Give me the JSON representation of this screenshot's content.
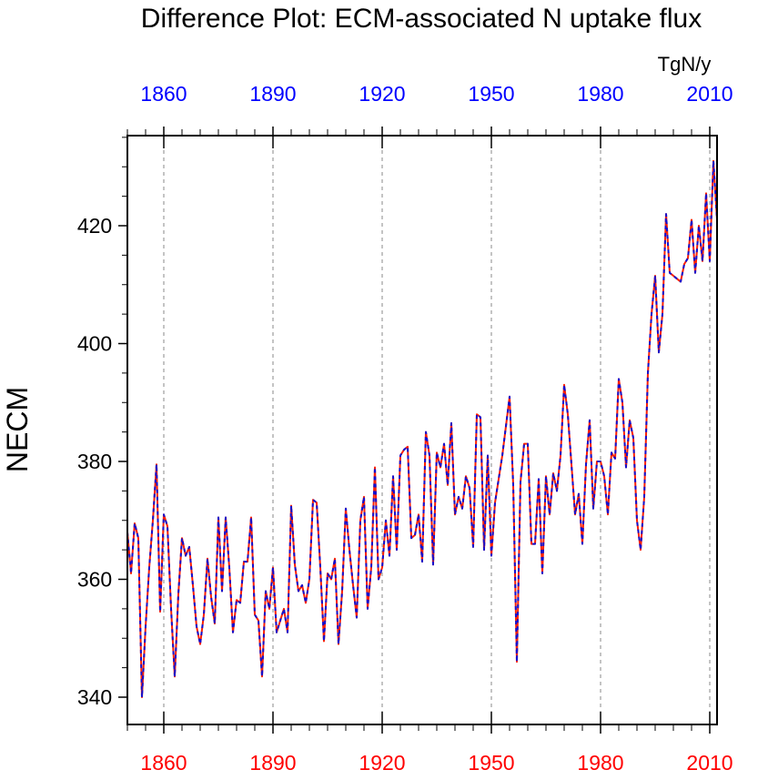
{
  "chart_data": {
    "type": "line",
    "title": "Difference Plot: ECM-associated N uptake flux",
    "units_label": "TgN/y",
    "xlabel": "",
    "ylabel": "NECM",
    "xlim": [
      1850,
      2010
    ],
    "ylim": [
      335,
      438
    ],
    "x_ticks": [
      1860,
      1890,
      1920,
      1950,
      1980,
      2010
    ],
    "x_tick_labels": [
      "1860",
      "1890",
      "1920",
      "1950",
      "1980",
      "2010"
    ],
    "y_ticks": [
      340,
      360,
      380,
      400,
      420
    ],
    "y_tick_labels": [
      "340",
      "360",
      "380",
      "400",
      "420"
    ],
    "grid": "vertical dashed at x ticks",
    "colors": {
      "top_axis_labels": "#0000ff",
      "bottom_axis_labels": "#ff0000",
      "series_a": "#ff2000",
      "series_b": "#1010d0",
      "grid": "#888888"
    },
    "series": [
      {
        "name": "series-red",
        "color": "#ff2000",
        "style": "solid",
        "x": [
          1850,
          1851,
          1852,
          1853,
          1854,
          1855,
          1856,
          1857,
          1858,
          1859,
          1860,
          1861,
          1862,
          1863,
          1864,
          1865,
          1866,
          1867,
          1868,
          1869,
          1870,
          1871,
          1872,
          1873,
          1874,
          1875,
          1876,
          1877,
          1878,
          1879,
          1880,
          1881,
          1882,
          1883,
          1884,
          1885,
          1886,
          1887,
          1888,
          1889,
          1890,
          1891,
          1892,
          1893,
          1894,
          1895,
          1896,
          1897,
          1898,
          1899,
          1900,
          1901,
          1902,
          1903,
          1904,
          1905,
          1906,
          1907,
          1908,
          1909,
          1910,
          1911,
          1912,
          1913,
          1914,
          1915,
          1916,
          1917,
          1918,
          1919,
          1920,
          1921,
          1922,
          1923,
          1924,
          1925,
          1926,
          1927,
          1928,
          1929,
          1930,
          1931,
          1932,
          1933,
          1934,
          1935,
          1936,
          1937,
          1938,
          1939,
          1940,
          1941,
          1942,
          1943,
          1944,
          1945,
          1946,
          1947,
          1948,
          1949,
          1950,
          1951,
          1952,
          1953,
          1954,
          1955,
          1956,
          1957,
          1958,
          1959,
          1960,
          1961,
          1962,
          1963,
          1964,
          1965,
          1966,
          1967,
          1968,
          1969,
          1970,
          1971,
          1972,
          1973,
          1974,
          1975,
          1976,
          1977,
          1978,
          1979,
          1980,
          1981,
          1982,
          1983,
          1984,
          1985,
          1986,
          1987,
          1988,
          1989,
          1990,
          1991,
          1992,
          1993,
          1994,
          1995,
          1996,
          1997,
          1998,
          1999,
          2000,
          2001,
          2002,
          2003,
          2004,
          2005,
          2006,
          2007,
          2008,
          2009,
          2010,
          2011,
          2012
        ],
        "values": [
          368.0,
          361.0,
          369.5,
          367.0,
          340.0,
          352.0,
          362.0,
          370.0,
          379.5,
          354.5,
          371.0,
          369.0,
          355.0,
          343.5,
          357.5,
          367.0,
          364.0,
          365.5,
          359.0,
          352.0,
          349.0,
          354.0,
          363.5,
          357.0,
          352.5,
          370.5,
          358.0,
          370.5,
          362.0,
          351.0,
          356.5,
          356.0,
          363.0,
          363.0,
          370.5,
          354.0,
          353.0,
          343.5,
          358.0,
          355.0,
          362.0,
          351.0,
          353.0,
          355.0,
          351.0,
          372.5,
          362.5,
          358.0,
          359.0,
          356.0,
          360.0,
          373.5,
          373.0,
          362.0,
          349.5,
          361.0,
          360.0,
          363.5,
          349.0,
          358.0,
          372.0,
          365.0,
          359.0,
          353.5,
          370.0,
          374.0,
          355.0,
          362.0,
          379.0,
          360.0,
          362.0,
          370.0,
          364.0,
          377.5,
          365.0,
          381.0,
          382.0,
          382.5,
          367.0,
          367.5,
          371.0,
          363.0,
          385.0,
          381.0,
          362.5,
          381.5,
          379.0,
          383.0,
          376.0,
          386.5,
          371.0,
          374.0,
          372.0,
          377.5,
          375.5,
          365.5,
          388.0,
          387.5,
          365.0,
          381.0,
          364.0,
          373.0,
          377.0,
          381.0,
          386.0,
          391.0,
          376.0,
          346.0,
          376.5,
          383.0,
          383.0,
          366.0,
          366.0,
          377.0,
          361.0,
          377.5,
          371.0,
          378.0,
          375.0,
          381.0,
          393.0,
          388.0,
          379.5,
          371.0,
          374.5,
          366.0,
          379.5,
          387.0,
          372.0,
          380.0,
          380.0,
          377.5,
          371.0,
          381.5,
          380.5,
          394.0,
          390.0,
          379.0,
          387.0,
          384.0,
          370.0,
          365.0,
          374.0,
          395.0,
          405.0,
          411.5,
          398.5,
          405.0,
          422.0,
          412.0,
          411.5,
          411.0,
          410.5,
          413.5,
          414.5,
          421.0,
          412.0,
          420.0,
          414.0,
          425.5,
          414.0,
          431.0,
          421.0
        ]
      },
      {
        "name": "series-blue",
        "color": "#1010d0",
        "style": "dashed",
        "x": [
          1850,
          1851,
          1852,
          1853,
          1854,
          1855,
          1856,
          1857,
          1858,
          1859,
          1860,
          1861,
          1862,
          1863,
          1864,
          1865,
          1866,
          1867,
          1868,
          1869,
          1870,
          1871,
          1872,
          1873,
          1874,
          1875,
          1876,
          1877,
          1878,
          1879,
          1880,
          1881,
          1882,
          1883,
          1884,
          1885,
          1886,
          1887,
          1888,
          1889,
          1890,
          1891,
          1892,
          1893,
          1894,
          1895,
          1896,
          1897,
          1898,
          1899,
          1900,
          1901,
          1902,
          1903,
          1904,
          1905,
          1906,
          1907,
          1908,
          1909,
          1910,
          1911,
          1912,
          1913,
          1914,
          1915,
          1916,
          1917,
          1918,
          1919,
          1920,
          1921,
          1922,
          1923,
          1924,
          1925,
          1926,
          1927,
          1928,
          1929,
          1930,
          1931,
          1932,
          1933,
          1934,
          1935,
          1936,
          1937,
          1938,
          1939,
          1940,
          1941,
          1942,
          1943,
          1944,
          1945,
          1946,
          1947,
          1948,
          1949,
          1950,
          1951,
          1952,
          1953,
          1954,
          1955,
          1956,
          1957,
          1958,
          1959,
          1960,
          1961,
          1962,
          1963,
          1964,
          1965,
          1966,
          1967,
          1968,
          1969,
          1970,
          1971,
          1972,
          1973,
          1974,
          1975,
          1976,
          1977,
          1978,
          1979,
          1980,
          1981,
          1982,
          1983,
          1984,
          1985,
          1986,
          1987,
          1988,
          1989,
          1990,
          1991,
          1992,
          1993,
          1994,
          1995,
          1996,
          1997,
          1998,
          1999,
          2000,
          2001,
          2002,
          2003,
          2004,
          2005,
          2006,
          2007,
          2008,
          2009,
          2010,
          2011,
          2012
        ],
        "values": [
          368.0,
          361.0,
          369.5,
          367.0,
          340.0,
          352.0,
          362.0,
          370.0,
          379.5,
          354.5,
          371.0,
          369.0,
          355.0,
          343.5,
          357.5,
          367.0,
          364.0,
          365.5,
          359.0,
          352.0,
          349.0,
          354.0,
          363.5,
          357.0,
          352.5,
          370.5,
          358.0,
          370.5,
          362.0,
          351.0,
          356.5,
          356.0,
          363.0,
          363.0,
          370.5,
          354.0,
          353.0,
          343.5,
          358.0,
          355.0,
          362.0,
          351.0,
          353.0,
          355.0,
          351.0,
          372.5,
          362.5,
          358.0,
          359.0,
          356.0,
          360.0,
          373.5,
          373.0,
          362.0,
          349.5,
          361.0,
          360.0,
          363.5,
          349.0,
          358.0,
          372.0,
          365.0,
          359.0,
          353.5,
          370.0,
          374.0,
          355.0,
          362.0,
          379.0,
          360.0,
          362.0,
          370.0,
          364.0,
          377.5,
          365.0,
          381.0,
          382.0,
          382.5,
          367.0,
          367.5,
          371.0,
          363.0,
          385.0,
          381.0,
          362.5,
          381.5,
          379.0,
          383.0,
          376.0,
          386.5,
          371.0,
          374.0,
          372.0,
          377.5,
          375.5,
          365.5,
          388.0,
          387.5,
          365.0,
          381.0,
          364.0,
          373.0,
          377.0,
          381.0,
          386.0,
          391.0,
          376.0,
          346.0,
          376.5,
          383.0,
          383.0,
          366.0,
          366.0,
          377.0,
          361.0,
          377.5,
          371.0,
          378.0,
          375.0,
          381.0,
          393.0,
          388.0,
          379.5,
          371.0,
          374.5,
          366.0,
          379.5,
          387.0,
          372.0,
          380.0,
          380.0,
          377.5,
          371.0,
          381.5,
          380.5,
          394.0,
          390.0,
          379.0,
          387.0,
          384.0,
          370.0,
          365.0,
          374.0,
          395.0,
          405.0,
          411.5,
          398.5,
          405.0,
          422.0,
          412.0,
          411.5,
          411.0,
          410.5,
          413.5,
          414.5,
          421.0,
          412.0,
          420.0,
          414.0,
          425.5,
          414.0,
          431.0,
          421.0
        ]
      }
    ]
  }
}
